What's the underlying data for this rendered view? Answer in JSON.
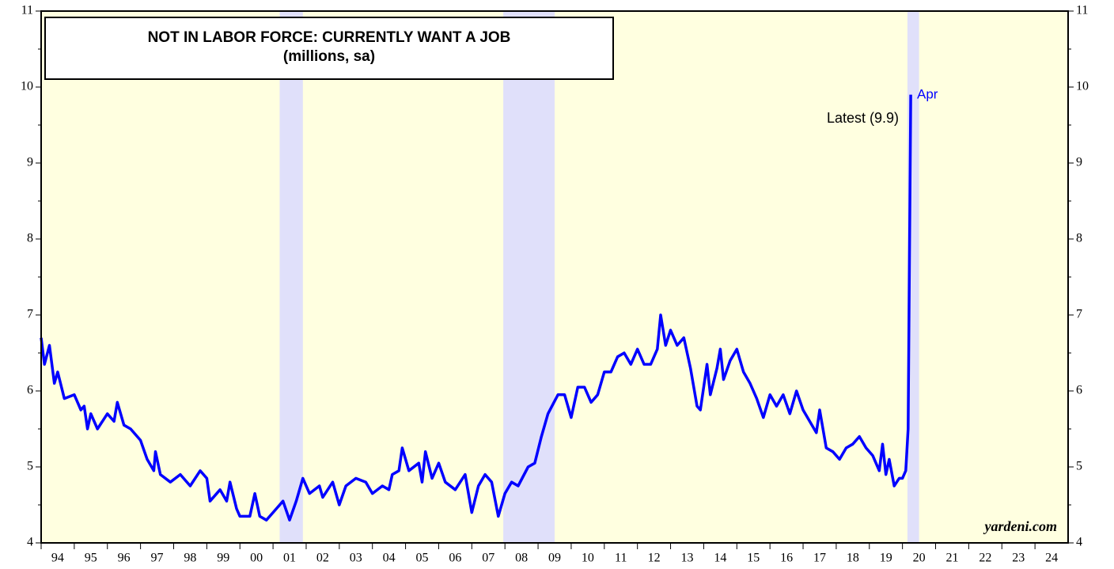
{
  "chart_data": {
    "type": "line",
    "title": "NOT IN LABOR FORCE: CURRENTLY WANT A JOB",
    "subtitle": "(millions, sa)",
    "color": "#0000ff",
    "background": "#ffffe0",
    "band_color": "#e0e0fa",
    "recessions": [
      [
        2001.2,
        2001.9
      ],
      [
        2007.95,
        2009.5
      ],
      [
        2020.15,
        2020.5
      ]
    ],
    "x": [
      1994.0,
      1994.1,
      1994.25,
      1994.4,
      1994.5,
      1994.7,
      1995.0,
      1995.2,
      1995.3,
      1995.4,
      1995.5,
      1995.7,
      1996.0,
      1996.2,
      1996.3,
      1996.5,
      1996.7,
      1997.0,
      1997.2,
      1997.4,
      1997.45,
      1997.6,
      1997.9,
      1998.2,
      1998.5,
      1998.8,
      1999.0,
      1999.1,
      1999.4,
      1999.6,
      1999.7,
      1999.9,
      2000.0,
      2000.3,
      2000.45,
      2000.6,
      2000.8,
      2001.0,
      2001.3,
      2001.5,
      2001.7,
      2001.9,
      2002.1,
      2002.4,
      2002.5,
      2002.8,
      2003.0,
      2003.2,
      2003.5,
      2003.8,
      2004.0,
      2004.3,
      2004.5,
      2004.6,
      2004.8,
      2004.9,
      2005.1,
      2005.4,
      2005.5,
      2005.6,
      2005.8,
      2006.0,
      2006.2,
      2006.5,
      2006.8,
      2007.0,
      2007.2,
      2007.4,
      2007.6,
      2007.8,
      2008.0,
      2008.2,
      2008.4,
      2008.7,
      2008.9,
      2009.1,
      2009.3,
      2009.6,
      2009.8,
      2010.0,
      2010.2,
      2010.4,
      2010.6,
      2010.8,
      2011.0,
      2011.2,
      2011.4,
      2011.6,
      2011.8,
      2012.0,
      2012.2,
      2012.4,
      2012.6,
      2012.7,
      2012.85,
      2013.0,
      2013.2,
      2013.4,
      2013.6,
      2013.8,
      2013.9,
      2014.1,
      2014.2,
      2014.4,
      2014.5,
      2014.6,
      2014.8,
      2015.0,
      2015.2,
      2015.4,
      2015.6,
      2015.8,
      2016.0,
      2016.2,
      2016.4,
      2016.6,
      2016.8,
      2017.0,
      2017.2,
      2017.4,
      2017.5,
      2017.7,
      2017.9,
      2018.1,
      2018.3,
      2018.5,
      2018.7,
      2018.9,
      2019.1,
      2019.3,
      2019.4,
      2019.5,
      2019.6,
      2019.75,
      2019.9,
      2020.0,
      2020.1,
      2020.17,
      2020.25
    ],
    "values": [
      6.7,
      6.35,
      6.6,
      6.1,
      6.25,
      5.9,
      5.95,
      5.75,
      5.8,
      5.5,
      5.7,
      5.5,
      5.7,
      5.6,
      5.85,
      5.55,
      5.5,
      5.35,
      5.1,
      4.95,
      5.2,
      4.9,
      4.8,
      4.9,
      4.75,
      4.95,
      4.85,
      4.55,
      4.7,
      4.55,
      4.8,
      4.45,
      4.35,
      4.35,
      4.65,
      4.35,
      4.3,
      4.4,
      4.55,
      4.3,
      4.55,
      4.85,
      4.65,
      4.75,
      4.6,
      4.8,
      4.5,
      4.75,
      4.85,
      4.8,
      4.65,
      4.75,
      4.7,
      4.9,
      4.95,
      5.25,
      4.95,
      5.05,
      4.8,
      5.2,
      4.85,
      5.05,
      4.8,
      4.7,
      4.9,
      4.4,
      4.75,
      4.9,
      4.8,
      4.35,
      4.65,
      4.8,
      4.75,
      5.0,
      5.05,
      5.4,
      5.7,
      5.95,
      5.95,
      5.65,
      6.05,
      6.05,
      5.85,
      5.95,
      6.25,
      6.25,
      6.45,
      6.5,
      6.35,
      6.55,
      6.35,
      6.35,
      6.55,
      7.0,
      6.6,
      6.8,
      6.6,
      6.7,
      6.3,
      5.8,
      5.75,
      6.35,
      5.95,
      6.3,
      6.55,
      6.15,
      6.4,
      6.55,
      6.25,
      6.1,
      5.9,
      5.65,
      5.95,
      5.8,
      5.95,
      5.7,
      6.0,
      5.75,
      5.6,
      5.45,
      5.75,
      5.25,
      5.2,
      5.1,
      5.25,
      5.3,
      5.4,
      5.25,
      5.15,
      4.95,
      5.3,
      4.9,
      5.1,
      4.75,
      4.85,
      4.85,
      4.95,
      5.5,
      9.9
    ],
    "xlim": [
      1994,
      2025
    ],
    "ylim": [
      4,
      11
    ],
    "yticks": [
      4,
      5,
      6,
      7,
      8,
      9,
      10,
      11
    ],
    "xticks": [
      {
        "value": 1994,
        "label": "94"
      },
      {
        "value": 1995,
        "label": "95"
      },
      {
        "value": 1996,
        "label": "96"
      },
      {
        "value": 1997,
        "label": "97"
      },
      {
        "value": 1998,
        "label": "98"
      },
      {
        "value": 1999,
        "label": "99"
      },
      {
        "value": 2000,
        "label": "00"
      },
      {
        "value": 2001,
        "label": "01"
      },
      {
        "value": 2002,
        "label": "02"
      },
      {
        "value": 2003,
        "label": "03"
      },
      {
        "value": 2004,
        "label": "04"
      },
      {
        "value": 2005,
        "label": "05"
      },
      {
        "value": 2006,
        "label": "06"
      },
      {
        "value": 2007,
        "label": "07"
      },
      {
        "value": 2008,
        "label": "08"
      },
      {
        "value": 2009,
        "label": "09"
      },
      {
        "value": 2010,
        "label": "10"
      },
      {
        "value": 2011,
        "label": "11"
      },
      {
        "value": 2012,
        "label": "12"
      },
      {
        "value": 2013,
        "label": "13"
      },
      {
        "value": 2014,
        "label": "14"
      },
      {
        "value": 2015,
        "label": "15"
      },
      {
        "value": 2016,
        "label": "16"
      },
      {
        "value": 2017,
        "label": "17"
      },
      {
        "value": 2018,
        "label": "18"
      },
      {
        "value": 2019,
        "label": "19"
      },
      {
        "value": 2020,
        "label": "20"
      },
      {
        "value": 2021,
        "label": "21"
      },
      {
        "value": 2022,
        "label": "22"
      },
      {
        "value": 2023,
        "label": "23"
      },
      {
        "value": 2024,
        "label": "24"
      }
    ],
    "annotations": [
      "Latest (9.9)",
      "Apr"
    ],
    "source": "yardeni.com"
  }
}
